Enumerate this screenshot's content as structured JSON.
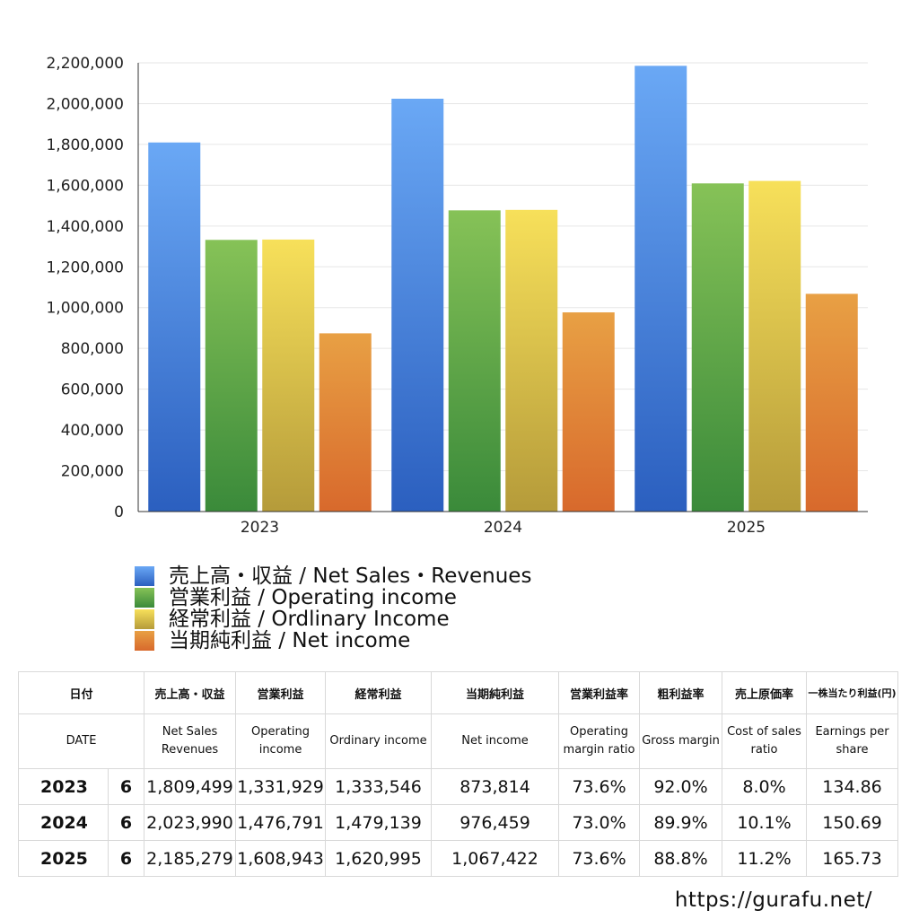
{
  "chart_data": {
    "type": "bar",
    "categories": [
      "2023",
      "2024",
      "2025"
    ],
    "series": [
      {
        "name": "売上高・収益 / Net Sales・Revenues",
        "values": [
          1809499,
          2023990,
          2185279
        ],
        "color_top": "#6aa8f5",
        "color_bottom": "#2b5fbf"
      },
      {
        "name": "営業利益 / Operating income",
        "values": [
          1331929,
          1476791,
          1608943
        ],
        "color_top": "#86c257",
        "color_bottom": "#3a8a3a"
      },
      {
        "name": "経常利益 / Ordlinary Income",
        "values": [
          1333546,
          1479139,
          1620995
        ],
        "color_top": "#f7e05a",
        "color_bottom": "#b59b3a"
      },
      {
        "name": "当期純利益 / Net income",
        "values": [
          873814,
          976459,
          1067422
        ],
        "color_top": "#e8a044",
        "color_bottom": "#d8692c"
      }
    ],
    "ylim": [
      0,
      2200000
    ],
    "yticks": [
      0,
      200000,
      400000,
      600000,
      800000,
      1000000,
      1200000,
      1400000,
      1600000,
      1800000,
      2000000,
      2200000
    ],
    "ytick_labels": [
      "0",
      "200,000",
      "400,000",
      "600,000",
      "800,000",
      "1,000,000",
      "1,200,000",
      "1,400,000",
      "1,600,000",
      "1,800,000",
      "2,000,000",
      "2,200,000"
    ],
    "grid": true,
    "legend_position": "bottom"
  },
  "table": {
    "header_jp": [
      "日付",
      "売上高・収益",
      "営業利益",
      "経常利益",
      "当期純利益",
      "営業利益率",
      "粗利益率",
      "売上原価率",
      "一株当たり利益(円)"
    ],
    "header_en": [
      "DATE",
      "Net Sales Revenues",
      "Operating income",
      "Ordinary income",
      "Net income",
      "Operating margin ratio",
      "Gross margin",
      "Cost of sales ratio",
      "Earnings per share"
    ],
    "rows": [
      {
        "year": "2023",
        "month": "6",
        "net_sales": "1,809,499",
        "operating": "1,331,929",
        "ordinary": "1,333,546",
        "net_income": "873,814",
        "op_margin": "73.6%",
        "gross_margin": "92.0%",
        "cost_ratio": "8.0%",
        "eps": "134.86"
      },
      {
        "year": "2024",
        "month": "6",
        "net_sales": "2,023,990",
        "operating": "1,476,791",
        "ordinary": "1,479,139",
        "net_income": "976,459",
        "op_margin": "73.0%",
        "gross_margin": "89.9%",
        "cost_ratio": "10.1%",
        "eps": "150.69"
      },
      {
        "year": "2025",
        "month": "6",
        "net_sales": "2,185,279",
        "operating": "1,608,943",
        "ordinary": "1,620,995",
        "net_income": "1,067,422",
        "op_margin": "73.6%",
        "gross_margin": "88.8%",
        "cost_ratio": "11.2%",
        "eps": "165.73"
      }
    ]
  },
  "site": "https://gurafu.net/"
}
